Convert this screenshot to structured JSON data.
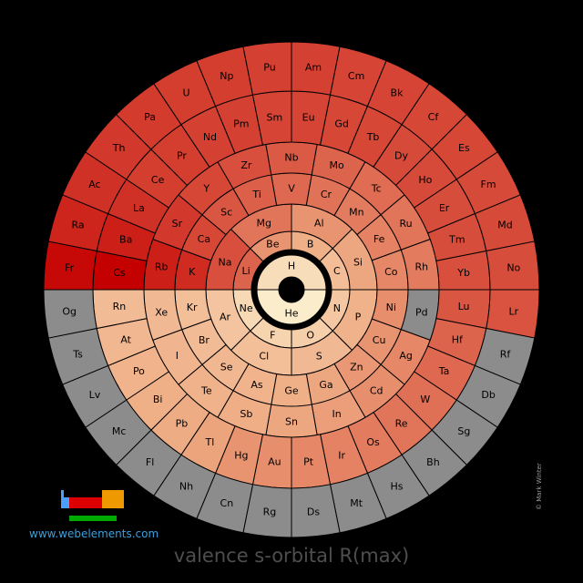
{
  "title": "valence s-orbital R(max)",
  "website": "www.webelements.com",
  "copyright": "© Mark Winter",
  "colors": {
    "background": "#000000",
    "no_data": "#8c8c8c",
    "low": "#ffffe0",
    "high": "#c40000"
  },
  "chart_data": {
    "type": "periodic-spiral",
    "rings": [
      {
        "ring": 1,
        "elements": [
          "H",
          "He"
        ]
      },
      {
        "ring": 2,
        "elements": [
          "Li",
          "Be",
          "B",
          "C",
          "N",
          "O",
          "F",
          "Ne"
        ]
      },
      {
        "ring": 3,
        "elements": [
          "Na",
          "Mg",
          "Al",
          "Si",
          "P",
          "S",
          "Cl",
          "Ar"
        ]
      },
      {
        "ring": 4,
        "elements": [
          "K",
          "Ca",
          "Sc",
          "Ti",
          "V",
          "Cr",
          "Mn",
          "Fe",
          "Co",
          "Ni",
          "Cu",
          "Zn",
          "Ga",
          "Ge",
          "As",
          "Se",
          "Br",
          "Kr"
        ]
      },
      {
        "ring": 5,
        "elements": [
          "Rb",
          "Sr",
          "Y",
          "Zr",
          "Nb",
          "Mo",
          "Tc",
          "Ru",
          "Rh",
          "Pd",
          "Ag",
          "Cd",
          "In",
          "Sn",
          "Sb",
          "Te",
          "I",
          "Xe"
        ]
      },
      {
        "ring": 6,
        "elements": [
          "Cs",
          "Ba",
          "La",
          "Ce",
          "Pr",
          "Nd",
          "Pm",
          "Sm",
          "Eu",
          "Gd",
          "Tb",
          "Dy",
          "Ho",
          "Er",
          "Tm",
          "Yb",
          "Lu",
          "Hf",
          "Ta",
          "W",
          "Re",
          "Os",
          "Ir",
          "Pt",
          "Au",
          "Hg",
          "Tl",
          "Pb",
          "Bi",
          "Po",
          "At",
          "Rn"
        ]
      },
      {
        "ring": 7,
        "elements": [
          "Fr",
          "Ra",
          "Ac",
          "Th",
          "Pa",
          "U",
          "Np",
          "Pu",
          "Am",
          "Cm",
          "Bk",
          "Cf",
          "Es",
          "Fm",
          "Md",
          "No",
          "Lr",
          "Rf",
          "Db",
          "Sg",
          "Bh",
          "Hs",
          "Mt",
          "Ds",
          "Rg",
          "Cn",
          "Nh",
          "Fl",
          "Mc",
          "Lv",
          "Ts",
          "Og"
        ]
      }
    ],
    "no_data": [
      "Rf",
      "Db",
      "Sg",
      "Bh",
      "Hs",
      "Mt",
      "Ds",
      "Rg",
      "Cn",
      "Nh",
      "Fl",
      "Mc",
      "Lv",
      "Ts",
      "Og",
      "Pd"
    ],
    "scale": {
      "H": 0.18,
      "He": 0.1,
      "Li": 0.68,
      "Be": 0.52,
      "B": 0.42,
      "C": 0.35,
      "N": 0.3,
      "O": 0.26,
      "F": 0.23,
      "Ne": 0.2,
      "Na": 0.74,
      "Mg": 0.62,
      "Al": 0.52,
      "Si": 0.46,
      "P": 0.41,
      "S": 0.37,
      "Cl": 0.34,
      "Ar": 0.31,
      "K": 0.86,
      "Ca": 0.77,
      "Sc": 0.72,
      "Ti": 0.69,
      "V": 0.66,
      "Cr": 0.63,
      "Mn": 0.6,
      "Fe": 0.58,
      "Co": 0.56,
      "Ni": 0.54,
      "Cu": 0.52,
      "Zn": 0.51,
      "Ga": 0.46,
      "Ge": 0.42,
      "As": 0.4,
      "Se": 0.38,
      "Br": 0.36,
      "Kr": 0.34,
      "Rb": 0.9,
      "Sr": 0.82,
      "Y": 0.77,
      "Zr": 0.74,
      "Nb": 0.71,
      "Mo": 0.68,
      "Tc": 0.65,
      "Ru": 0.62,
      "Rh": 0.6,
      "Ag": 0.56,
      "Cd": 0.54,
      "In": 0.49,
      "Sn": 0.46,
      "Sb": 0.43,
      "Te": 0.41,
      "I": 0.39,
      "Xe": 0.37,
      "Cs": 1.0,
      "Ba": 0.9,
      "La": 0.84,
      "Ce": 0.8,
      "Pr": 0.8,
      "Nd": 0.79,
      "Pm": 0.79,
      "Sm": 0.78,
      "Eu": 0.78,
      "Gd": 0.77,
      "Tb": 0.77,
      "Dy": 0.76,
      "Ho": 0.76,
      "Er": 0.75,
      "Tm": 0.75,
      "Yb": 0.74,
      "Lu": 0.72,
      "Hf": 0.68,
      "Ta": 0.66,
      "W": 0.64,
      "Re": 0.62,
      "Os": 0.6,
      "Ir": 0.58,
      "Pt": 0.56,
      "Au": 0.54,
      "Hg": 0.52,
      "Tl": 0.47,
      "Pb": 0.44,
      "Bi": 0.42,
      "Po": 0.4,
      "At": 0.38,
      "Rn": 0.36,
      "Fr": 0.97,
      "Ra": 0.88,
      "Ac": 0.84,
      "Th": 0.82,
      "Pa": 0.81,
      "U": 0.8,
      "Np": 0.8,
      "Pu": 0.79,
      "Am": 0.79,
      "Cm": 0.78,
      "Bk": 0.78,
      "Cf": 0.77,
      "Es": 0.77,
      "Fm": 0.76,
      "Md": 0.76,
      "No": 0.75,
      "Lr": 0.73
    }
  }
}
